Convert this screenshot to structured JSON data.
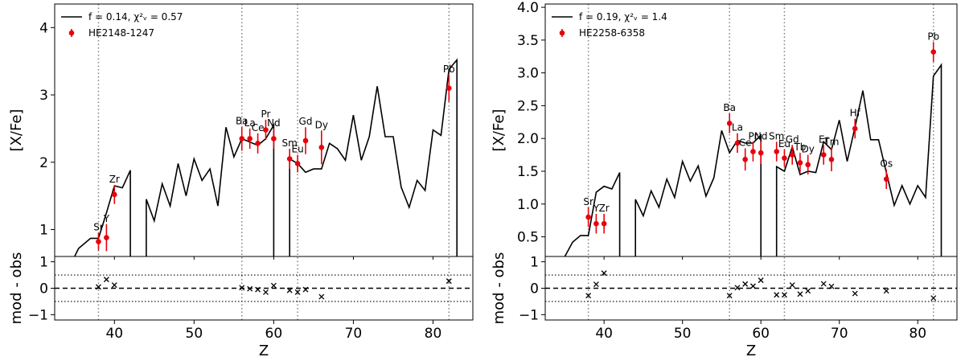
{
  "chart_data": [
    {
      "type": "line",
      "xlabel": "Z",
      "ylabel": "[X/Fe]",
      "resid_ylabel": "mod - obs",
      "xlim": [
        32.5,
        85
      ],
      "ylim": [
        0.6,
        4.35
      ],
      "resid_ylim": [
        -1.2,
        1.2
      ],
      "xticks": [
        "40",
        "50",
        "60",
        "70",
        "80"
      ],
      "xtick_values": [
        40,
        50,
        60,
        70,
        80
      ],
      "yticks": [
        "1",
        "2",
        "3",
        "4"
      ],
      "ytick_values": [
        1,
        2,
        3,
        4
      ],
      "resid_yticks": [
        "1",
        "0",
        "−1"
      ],
      "resid_ytick_values": [
        1,
        0,
        -1
      ],
      "vlines": [
        38,
        56,
        63,
        82
      ],
      "legend": {
        "model": "f = 0.14, χ²ᵥ = 0.57",
        "star": "HE2148-1247"
      },
      "model_segments": [
        [
          [
            35,
            0.6
          ],
          [
            35.5,
            0.72
          ],
          [
            37,
            0.87
          ],
          [
            38,
            0.87
          ],
          [
            39,
            1.25
          ],
          [
            40,
            1.65
          ],
          [
            41,
            1.62
          ],
          [
            42,
            1.88
          ],
          [
            42,
            0.6
          ]
        ],
        [
          [
            44,
            0.6
          ],
          [
            44,
            1.45
          ],
          [
            45,
            1.13
          ],
          [
            46,
            1.68
          ],
          [
            47,
            1.35
          ],
          [
            48,
            1.98
          ],
          [
            49,
            1.5
          ],
          [
            50,
            2.05
          ],
          [
            51,
            1.73
          ],
          [
            52,
            1.9
          ],
          [
            53,
            1.35
          ],
          [
            54,
            2.52
          ],
          [
            55,
            2.08
          ],
          [
            56,
            2.35
          ],
          [
            57,
            2.3
          ],
          [
            58,
            2.25
          ],
          [
            59,
            2.35
          ],
          [
            60,
            2.55
          ],
          [
            60,
            0.6
          ]
        ],
        [
          [
            62,
            0.6
          ],
          [
            62,
            2.05
          ],
          [
            63,
            1.98
          ],
          [
            64,
            1.85
          ],
          [
            65,
            1.9
          ],
          [
            66,
            1.9
          ],
          [
            67,
            2.28
          ],
          [
            68,
            2.2
          ],
          [
            69,
            2.03
          ],
          [
            70,
            2.7
          ],
          [
            71,
            2.03
          ],
          [
            72,
            2.38
          ],
          [
            73,
            3.13
          ],
          [
            74,
            2.38
          ],
          [
            75,
            2.38
          ],
          [
            76,
            1.63
          ],
          [
            77,
            1.33
          ],
          [
            78,
            1.73
          ],
          [
            79,
            1.58
          ],
          [
            80,
            2.48
          ],
          [
            81,
            2.4
          ],
          [
            82,
            3.38
          ],
          [
            83,
            3.52
          ],
          [
            83,
            0.6
          ]
        ]
      ],
      "observations": [
        {
          "el": "Sr",
          "z": 38,
          "val": 0.82,
          "err": 0.13,
          "resid": 0.05
        },
        {
          "el": "Y",
          "z": 39,
          "val": 0.88,
          "err": 0.2,
          "resid": 0.33
        },
        {
          "el": "Zr",
          "z": 40,
          "val": 1.52,
          "err": 0.14,
          "resid": 0.12
        },
        {
          "el": "Ba",
          "z": 56,
          "val": 2.35,
          "err": 0.18,
          "resid": 0.02
        },
        {
          "el": "La",
          "z": 57,
          "val": 2.35,
          "err": 0.15,
          "resid": -0.02
        },
        {
          "el": "Ce",
          "z": 58,
          "val": 2.28,
          "err": 0.15,
          "resid": -0.05
        },
        {
          "el": "Pr",
          "z": 59,
          "val": 2.48,
          "err": 0.15,
          "resid": -0.15
        },
        {
          "el": "Nd",
          "z": 60,
          "val": 2.35,
          "err": 0.15,
          "resid": 0.1
        },
        {
          "el": "Sm",
          "z": 62,
          "val": 2.05,
          "err": 0.15,
          "resid": -0.08
        },
        {
          "el": "Eu",
          "z": 63,
          "val": 1.98,
          "err": 0.13,
          "resid": -0.15
        },
        {
          "el": "Gd",
          "z": 64,
          "val": 2.32,
          "err": 0.2,
          "resid": -0.05
        },
        {
          "el": "Dy",
          "z": 66,
          "val": 2.22,
          "err": 0.25,
          "resid": -0.32
        },
        {
          "el": "Pb",
          "z": 82,
          "val": 3.1,
          "err": 0.2,
          "resid": 0.27
        }
      ]
    },
    {
      "type": "line",
      "xlabel": "Z",
      "ylabel": "[X/Fe]",
      "resid_ylabel": "mod - obs",
      "xlim": [
        32.5,
        85
      ],
      "ylim": [
        0.2,
        4.05
      ],
      "resid_ylim": [
        -1.2,
        1.2
      ],
      "xticks": [
        "40",
        "50",
        "60",
        "70",
        "80"
      ],
      "xtick_values": [
        40,
        50,
        60,
        70,
        80
      ],
      "yticks": [
        "0.5",
        "1.0",
        "1.5",
        "2.0",
        "2.5",
        "3.0",
        "3.5",
        "4.0"
      ],
      "ytick_values": [
        0.5,
        1.0,
        1.5,
        2.0,
        2.5,
        3.0,
        3.5,
        4.0
      ],
      "resid_yticks": [
        "1",
        "0",
        "−1"
      ],
      "resid_ytick_values": [
        1,
        0,
        -1
      ],
      "vlines": [
        38,
        56,
        63,
        82
      ],
      "legend": {
        "model": "f = 0.19, χ²ᵥ = 1.4",
        "star": "HE2258-6358"
      },
      "model_segments": [
        [
          [
            35,
            0.2
          ],
          [
            36,
            0.42
          ],
          [
            37,
            0.52
          ],
          [
            38,
            0.52
          ],
          [
            39,
            1.18
          ],
          [
            40,
            1.27
          ],
          [
            41,
            1.23
          ],
          [
            42,
            1.48
          ],
          [
            42,
            0.2
          ]
        ],
        [
          [
            44,
            0.2
          ],
          [
            44,
            1.07
          ],
          [
            45,
            0.82
          ],
          [
            46,
            1.2
          ],
          [
            47,
            0.95
          ],
          [
            48,
            1.38
          ],
          [
            49,
            1.1
          ],
          [
            50,
            1.65
          ],
          [
            51,
            1.35
          ],
          [
            52,
            1.58
          ],
          [
            53,
            1.12
          ],
          [
            54,
            1.4
          ],
          [
            55,
            2.12
          ],
          [
            56,
            1.78
          ],
          [
            57,
            1.97
          ],
          [
            58,
            1.93
          ],
          [
            59,
            1.93
          ],
          [
            60,
            2.05
          ],
          [
            60,
            0.2
          ]
        ],
        [
          [
            62,
            0.2
          ],
          [
            62,
            1.57
          ],
          [
            63,
            1.5
          ],
          [
            64,
            1.87
          ],
          [
            65,
            1.45
          ],
          [
            66,
            1.5
          ],
          [
            67,
            1.48
          ],
          [
            68,
            1.95
          ],
          [
            69,
            1.83
          ],
          [
            70,
            2.28
          ],
          [
            71,
            1.65
          ],
          [
            72,
            2.17
          ],
          [
            73,
            2.73
          ],
          [
            74,
            1.98
          ],
          [
            75,
            1.98
          ],
          [
            76,
            1.48
          ],
          [
            77,
            0.98
          ],
          [
            78,
            1.28
          ],
          [
            79,
            1.0
          ],
          [
            80,
            1.28
          ],
          [
            81,
            1.1
          ],
          [
            82,
            2.95
          ],
          [
            83,
            3.12
          ],
          [
            83,
            0.2
          ]
        ]
      ],
      "observations": [
        {
          "el": "Sr",
          "z": 38,
          "val": 0.8,
          "err": 0.15,
          "resid": -0.28
        },
        {
          "el": "Y",
          "z": 39,
          "val": 0.7,
          "err": 0.15,
          "resid": 0.15
        },
        {
          "el": "Zr",
          "z": 40,
          "val": 0.7,
          "err": 0.15,
          "resid": 0.57
        },
        {
          "el": "Ba",
          "z": 56,
          "val": 2.23,
          "err": 0.15,
          "resid": -0.28
        },
        {
          "el": "La",
          "z": 57,
          "val": 1.93,
          "err": 0.15,
          "resid": 0.02
        },
        {
          "el": "Ce",
          "z": 58,
          "val": 1.68,
          "err": 0.17,
          "resid": 0.16
        },
        {
          "el": "Pr",
          "z": 59,
          "val": 1.8,
          "err": 0.15,
          "resid": 0.08
        },
        {
          "el": "Nd",
          "z": 60,
          "val": 1.78,
          "err": 0.17,
          "resid": 0.3
        },
        {
          "el": "Sm",
          "z": 62,
          "val": 1.8,
          "err": 0.15,
          "resid": -0.25
        },
        {
          "el": "Eu",
          "z": 63,
          "val": 1.7,
          "err": 0.13,
          "resid": -0.25
        },
        {
          "el": "Gd",
          "z": 64,
          "val": 1.75,
          "err": 0.15,
          "resid": 0.12
        },
        {
          "el": "Tb",
          "z": 65,
          "val": 1.63,
          "err": 0.15,
          "resid": -0.22
        },
        {
          "el": "Dy",
          "z": 66,
          "val": 1.6,
          "err": 0.15,
          "resid": -0.1
        },
        {
          "el": "Er",
          "z": 68,
          "val": 1.75,
          "err": 0.15,
          "resid": 0.17
        },
        {
          "el": "Tm",
          "z": 69,
          "val": 1.68,
          "err": 0.18,
          "resid": 0.07
        },
        {
          "el": "Hf",
          "z": 72,
          "val": 2.15,
          "err": 0.15,
          "resid": -0.2
        },
        {
          "el": "Os",
          "z": 76,
          "val": 1.38,
          "err": 0.15,
          "resid": -0.1
        },
        {
          "el": "Pb",
          "z": 82,
          "val": 3.32,
          "err": 0.15,
          "resid": -0.37
        }
      ]
    }
  ]
}
